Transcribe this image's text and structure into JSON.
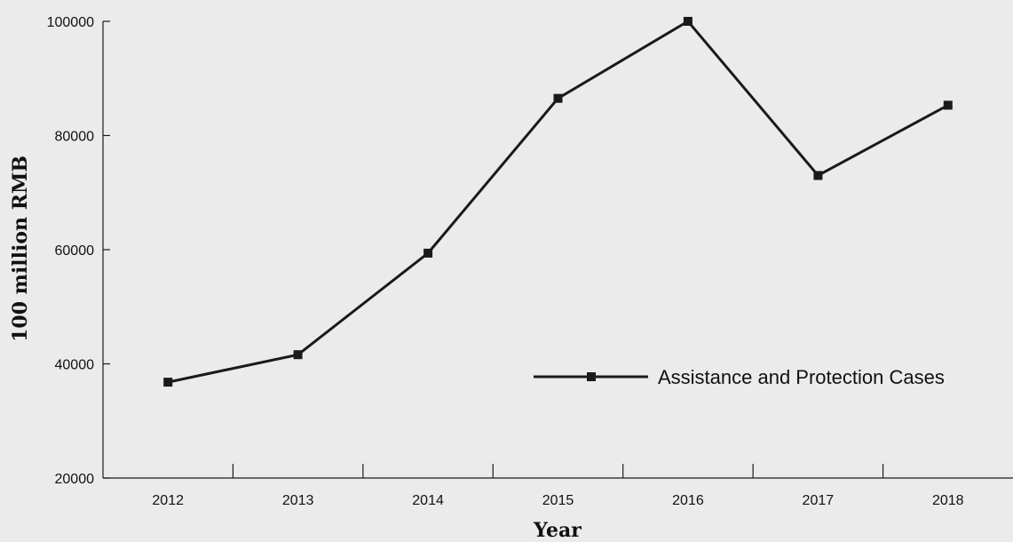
{
  "chart_data": {
    "type": "line",
    "xlabel": "Year",
    "ylabel": "100 million RMB",
    "categories": [
      "2012",
      "2013",
      "2014",
      "2015",
      "2016",
      "2017",
      "2018"
    ],
    "series": [
      {
        "name": "Assistance and Protection Cases",
        "values": [
          36800,
          41600,
          59400,
          86500,
          100000,
          73000,
          85300
        ],
        "color": "#1a1a1a",
        "marker": "square"
      }
    ],
    "ylim": [
      20000,
      100000
    ],
    "yticks": [
      "20000",
      "40000",
      "60000",
      "80000",
      "100000"
    ],
    "grid": false,
    "legend": {
      "position": "center-right",
      "label": "Assistance and Protection Cases"
    },
    "colors": {
      "background": "#ebebec",
      "axis": "#1a1a1a",
      "line": "#1a1a1a"
    }
  }
}
